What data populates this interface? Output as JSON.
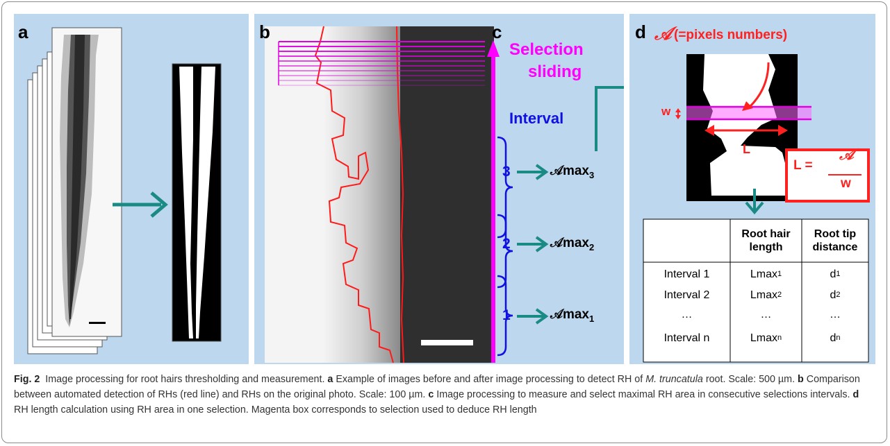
{
  "panels": {
    "a": {
      "label": "a"
    },
    "b": {
      "label": "b"
    },
    "c": {
      "label": "c",
      "selection_title_1": "Selection",
      "selection_title_2": "sliding",
      "interval_title": "Interval",
      "intervals": [
        {
          "num": "3",
          "amax": "𝒜max",
          "sub": "3"
        },
        {
          "num": "2",
          "amax": "𝒜max",
          "sub": "2"
        },
        {
          "num": "1",
          "amax": "𝒜max",
          "sub": "1"
        }
      ]
    },
    "d": {
      "label": "d",
      "a_symbol": "𝒜",
      "a_note": "(=pixels numbers)",
      "w_label": "w",
      "l_label": "L",
      "formula_lhs": "L =",
      "formula_num": "𝒜",
      "formula_den": "w",
      "table": {
        "headers": [
          "",
          "Root hair length",
          "Root tip distance"
        ],
        "rows": [
          {
            "c0": "Interval 1",
            "c1": "Lmax",
            "c1sub": "1",
            "c2": "d",
            "c2sub": "1"
          },
          {
            "c0": "Interval 2",
            "c1": "Lmax",
            "c1sub": "2",
            "c2": "d",
            "c2sub": "2"
          },
          {
            "c0": "…",
            "c1": "…",
            "c1sub": "",
            "c2": "…",
            "c2sub": ""
          },
          {
            "c0": "Interval n",
            "c1": "Lmax",
            "c1sub": "n",
            "c2": "d",
            "c2sub": "n"
          }
        ]
      }
    }
  },
  "caption": {
    "fig_label": "Fig. 2",
    "title": "Image processing for root hairs thresholding and measurement.",
    "a_label": "a",
    "a_text_1": "Example of images before and after image processing to detect RH of",
    "a_species": "M. truncatula",
    "a_text_2": "root. Scale: 500 µm.",
    "b_label": "b",
    "b_text": "Comparison between automated detection of RHs (red line) and RHs on the original photo. Scale: 100 µm.",
    "c_label": "c",
    "c_text": "Image processing to measure and select maximal RH area in consecutive selections intervals.",
    "d_label": "d",
    "d_text": "RH length calculation using RH area in one selection. Magenta box corresponds to selection used to deduce RH length"
  },
  "colors": {
    "panel_bg": "#bcd7ee",
    "teal_arrow": "#1a8a84",
    "magenta": "#ff00ff",
    "blue": "#1010e0",
    "red": "#ff2020"
  }
}
